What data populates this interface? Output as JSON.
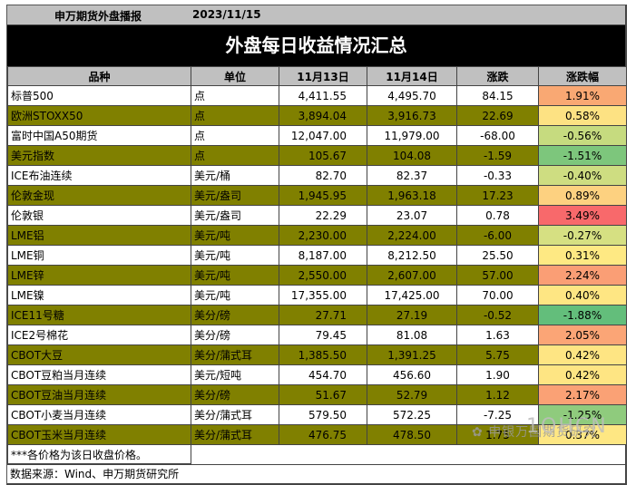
{
  "header": {
    "org": "申万期货外盘播报",
    "date": "2023/11/15",
    "title": "外盘每日收益情况汇总"
  },
  "columns": [
    "品种",
    "单位",
    "11月13日",
    "11月14日",
    "涨跌",
    "涨跌幅"
  ],
  "rows": [
    {
      "name": "标普500",
      "unit": "点",
      "d13": "4,411.55",
      "d14": "4,495.70",
      "chg": "84.15",
      "pct": "1.91%",
      "pct_color": "#f9a873",
      "shade": "white"
    },
    {
      "name": "欧洲STOXX50",
      "unit": "点",
      "d13": "3,894.04",
      "d14": "3,916.73",
      "chg": "22.69",
      "pct": "0.58%",
      "pct_color": "#fde283",
      "shade": "olive"
    },
    {
      "name": "富时中国A50期货",
      "unit": "点",
      "d13": "12,047.00",
      "d14": "11,979.00",
      "chg": "-68.00",
      "pct": "-0.56%",
      "pct_color": "#c6db7f",
      "shade": "white"
    },
    {
      "name": "美元指数",
      "unit": "点",
      "d13": "105.67",
      "d14": "104.08",
      "chg": "-1.59",
      "pct": "-1.51%",
      "pct_color": "#7dc67c",
      "shade": "olive"
    },
    {
      "name": "ICE布油连续",
      "unit": "美元/桶",
      "d13": "82.70",
      "d14": "82.37",
      "chg": "-0.33",
      "pct": "-0.40%",
      "pct_color": "#cedd81",
      "shade": "white"
    },
    {
      "name": "伦敦金现",
      "unit": "美元/盎司",
      "d13": "1,945.95",
      "d14": "1,963.18",
      "chg": "17.23",
      "pct": "0.89%",
      "pct_color": "#fdd180",
      "shade": "olive"
    },
    {
      "name": "伦敦银",
      "unit": "美元/盎司",
      "d13": "22.29",
      "d14": "23.07",
      "chg": "0.78",
      "pct": "3.49%",
      "pct_color": "#f8696b",
      "shade": "white"
    },
    {
      "name": "LME铝",
      "unit": "美元/吨",
      "d13": "2,230.00",
      "d14": "2,224.00",
      "chg": "-6.00",
      "pct": "-0.27%",
      "pct_color": "#d6e082",
      "shade": "olive"
    },
    {
      "name": "LME铜",
      "unit": "美元/吨",
      "d13": "8,187.00",
      "d14": "8,212.50",
      "chg": "25.50",
      "pct": "0.31%",
      "pct_color": "#fee983",
      "shade": "white"
    },
    {
      "name": "LME锌",
      "unit": "美元/吨",
      "d13": "2,550.00",
      "d14": "2,607.00",
      "chg": "57.00",
      "pct": "2.24%",
      "pct_color": "#fa9e75",
      "shade": "olive"
    },
    {
      "name": "LME镍",
      "unit": "美元/吨",
      "d13": "17,355.00",
      "d14": "17,425.00",
      "chg": "70.00",
      "pct": "0.40%",
      "pct_color": "#fee683",
      "shade": "white"
    },
    {
      "name": "ICE11号糖",
      "unit": "美分/磅",
      "d13": "27.71",
      "d14": "27.19",
      "chg": "-0.52",
      "pct": "-1.88%",
      "pct_color": "#63be7b",
      "shade": "olive"
    },
    {
      "name": "ICE2号棉花",
      "unit": "美分/磅",
      "d13": "79.45",
      "d14": "81.08",
      "chg": "1.63",
      "pct": "2.05%",
      "pct_color": "#fba576",
      "shade": "white"
    },
    {
      "name": "CBOT大豆",
      "unit": "美分/蒲式耳",
      "d13": "1,385.50",
      "d14": "1,391.25",
      "chg": "5.75",
      "pct": "0.42%",
      "pct_color": "#fee583",
      "shade": "olive"
    },
    {
      "name": "CBOT豆粕当月连续",
      "unit": "美元/短吨",
      "d13": "454.70",
      "d14": "456.60",
      "chg": "1.90",
      "pct": "0.42%",
      "pct_color": "#fee583",
      "shade": "white"
    },
    {
      "name": "CBOT豆油当月连续",
      "unit": "美分/磅",
      "d13": "51.67",
      "d14": "52.79",
      "chg": "1.12",
      "pct": "2.17%",
      "pct_color": "#faa175",
      "shade": "olive"
    },
    {
      "name": "CBOT小麦当月连续",
      "unit": "美分/蒲式耳",
      "d13": "579.50",
      "d14": "572.25",
      "chg": "-7.25",
      "pct": "-1.25%",
      "pct_color": "#8fcb7d",
      "shade": "white"
    },
    {
      "name": "CBOT玉米当月连续",
      "unit": "美分/蒲式耳",
      "d13": "476.75",
      "d14": "478.50",
      "chg": "1.75",
      "pct": "0.37%",
      "pct_color": "#fee783",
      "shade": "olive"
    }
  ],
  "footnote": "***各价格为该日收盘价格。",
  "source": "数据来源：Wind、申万期货研究所",
  "watermark": {
    "text": "申银万国期货研究",
    "overlay": "1QHCN"
  },
  "colors": {
    "olive": "#808000",
    "header_gray": "#c0c0c0",
    "title_black": "#000000"
  }
}
